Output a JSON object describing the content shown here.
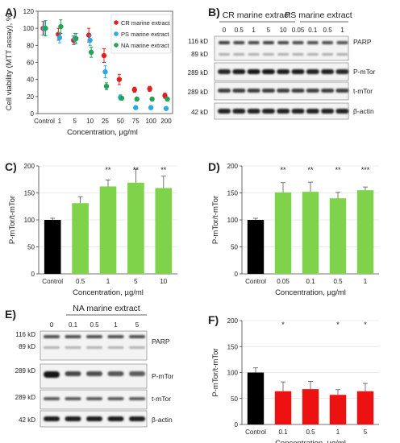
{
  "chart_data": [
    {
      "panel": "A)",
      "type": "scatter",
      "categories": [
        "Control",
        "1",
        "5",
        "10",
        "25",
        "50",
        "75",
        "100",
        "200"
      ],
      "ylim": [
        0,
        120
      ],
      "yticks": [
        0,
        20,
        40,
        60,
        80,
        100,
        120
      ],
      "ylabel": "Cell viability (MTT assay), %",
      "xlabel": "Concentration, µg/ml",
      "legend": "top-right",
      "series": [
        {
          "name": "CR marine extract",
          "color": "#e02020",
          "values": [
            100,
            93,
            86,
            92,
            68,
            40,
            28,
            29,
            21
          ],
          "errors": [
            8,
            7,
            5,
            8,
            8,
            6,
            3,
            3,
            3
          ]
        },
        {
          "name": "PS marine extract",
          "color": "#29a9e8",
          "values": [
            100,
            89,
            88,
            86,
            49,
            19,
            7,
            7,
            6
          ],
          "errors": [
            8,
            6,
            6,
            6,
            7,
            3,
            2,
            2,
            2
          ]
        },
        {
          "name": "NA marine extract",
          "color": "#23a355",
          "values": [
            100,
            102,
            88,
            72,
            32,
            18,
            17,
            17,
            17
          ],
          "errors": [
            9,
            8,
            6,
            6,
            4,
            2,
            2,
            2,
            2
          ]
        }
      ]
    },
    {
      "panel": "C)",
      "type": "bar",
      "categories": [
        "Control",
        "0.5",
        "1",
        "5",
        "10"
      ],
      "values": [
        100,
        131,
        162,
        169,
        159
      ],
      "errors": [
        3,
        12,
        12,
        25,
        22
      ],
      "colors": [
        "#000000",
        "#7ed34a",
        "#7ed34a",
        "#7ed34a",
        "#7ed34a"
      ],
      "sig": [
        "",
        "",
        "**",
        "**",
        "**"
      ],
      "ylim": [
        0,
        200
      ],
      "yticks": [
        0,
        50,
        100,
        150,
        200
      ],
      "ylabel": "P-mTor/t-mTor",
      "xlabel": "Concentration, µg/ml"
    },
    {
      "panel": "D)",
      "type": "bar",
      "categories": [
        "Control",
        "0.05",
        "0.1",
        "0.5",
        "1"
      ],
      "values": [
        100,
        151,
        152,
        140,
        155
      ],
      "errors": [
        3,
        18,
        18,
        11,
        6
      ],
      "colors": [
        "#000000",
        "#7ed34a",
        "#7ed34a",
        "#7ed34a",
        "#7ed34a"
      ],
      "sig": [
        "",
        "**",
        "**",
        "**",
        "***"
      ],
      "ylim": [
        0,
        200
      ],
      "yticks": [
        0,
        50,
        100,
        150,
        200
      ],
      "ylabel": "P-mTor/t-mTor",
      "xlabel": "Concentration, µg/ml"
    },
    {
      "panel": "F)",
      "type": "bar",
      "categories": [
        "Control",
        "0.1",
        "0.5",
        "1",
        "5"
      ],
      "values": [
        100,
        64,
        68,
        57,
        64
      ],
      "errors": [
        9,
        18,
        15,
        10,
        15
      ],
      "colors": [
        "#000000",
        "#ee1111",
        "#ee1111",
        "#ee1111",
        "#ee1111"
      ],
      "sig": [
        "",
        "*",
        "",
        "*",
        "*"
      ],
      "ylim": [
        0,
        200
      ],
      "yticks": [
        0,
        50,
        100,
        150,
        200
      ],
      "ylabel": "P-mTor/t-mTor",
      "xlabel": "Concentration, µg/ml"
    }
  ],
  "blots": {
    "B": {
      "panel": "B)",
      "groups": [
        "CR marine extract",
        "PS marine extract"
      ],
      "lanes": [
        "0",
        "0.5",
        "1",
        "5",
        "10",
        "0.05",
        "0.1",
        "0.5",
        "1"
      ],
      "markers": [
        "116 kD",
        "89 kD",
        "289 kD",
        "289 kD",
        "42 kD"
      ],
      "proteins": [
        "PARP",
        "P-mTor",
        "t-mTor",
        "β-actin"
      ]
    },
    "E": {
      "panel": "E)",
      "group": "NA marine extract",
      "lanes": [
        "0",
        "0.1",
        "0.5",
        "1",
        "5"
      ],
      "markers": [
        "116 kD",
        "89 kD",
        "289 kD",
        "289 kD",
        "42 kD"
      ],
      "proteins": [
        "PARP",
        "P-mTor",
        "t-mTor",
        "β-actin"
      ]
    }
  }
}
